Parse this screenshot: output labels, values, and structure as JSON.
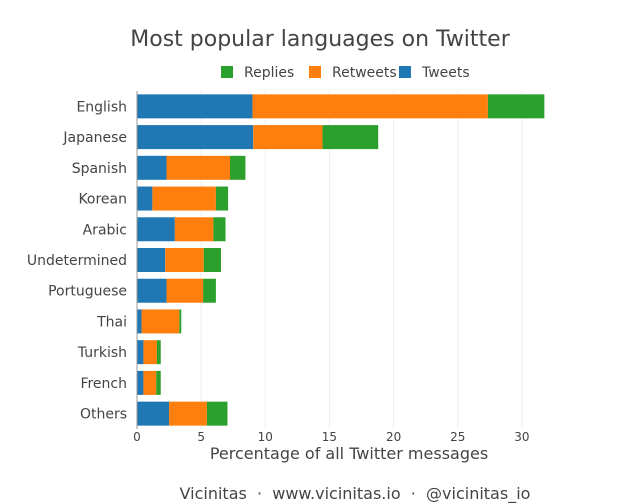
{
  "chart_data": {
    "type": "bar",
    "orientation": "horizontal",
    "stacked": true,
    "title": "Most popular languages on Twitter",
    "xlabel": "Percentage of all Twitter messages",
    "ylabel": "",
    "xlim": [
      0,
      31.8
    ],
    "xticks": [
      0,
      5,
      10,
      15,
      20,
      25,
      30
    ],
    "grid": true,
    "legend_position": "top",
    "categories": [
      "English",
      "Japanese",
      "Spanish",
      "Korean",
      "Arabic",
      "Undetermined",
      "Portuguese",
      "Thai",
      "Turkish",
      "French",
      "Others"
    ],
    "series": [
      {
        "name": "Tweets",
        "color": "#1f77b4",
        "values": [
          9.0,
          9.06,
          2.3,
          1.2,
          2.95,
          2.2,
          2.3,
          0.35,
          0.5,
          0.5,
          2.5
        ]
      },
      {
        "name": "Retweets",
        "color": "#ff7f0e",
        "values": [
          18.35,
          5.4,
          4.95,
          4.95,
          3.0,
          3.0,
          2.85,
          2.95,
          1.05,
          1.0,
          2.95
        ]
      },
      {
        "name": "Replies",
        "color": "#2ca02c",
        "values": [
          4.4,
          4.34,
          1.2,
          0.95,
          0.95,
          1.35,
          1.0,
          0.15,
          0.3,
          0.35,
          1.6
        ]
      }
    ],
    "legend_order": [
      "Replies",
      "Retweets",
      "Tweets"
    ]
  },
  "footer": "Vicinitas  ·  www.vicinitas.io  ·  @vicinitas_io"
}
